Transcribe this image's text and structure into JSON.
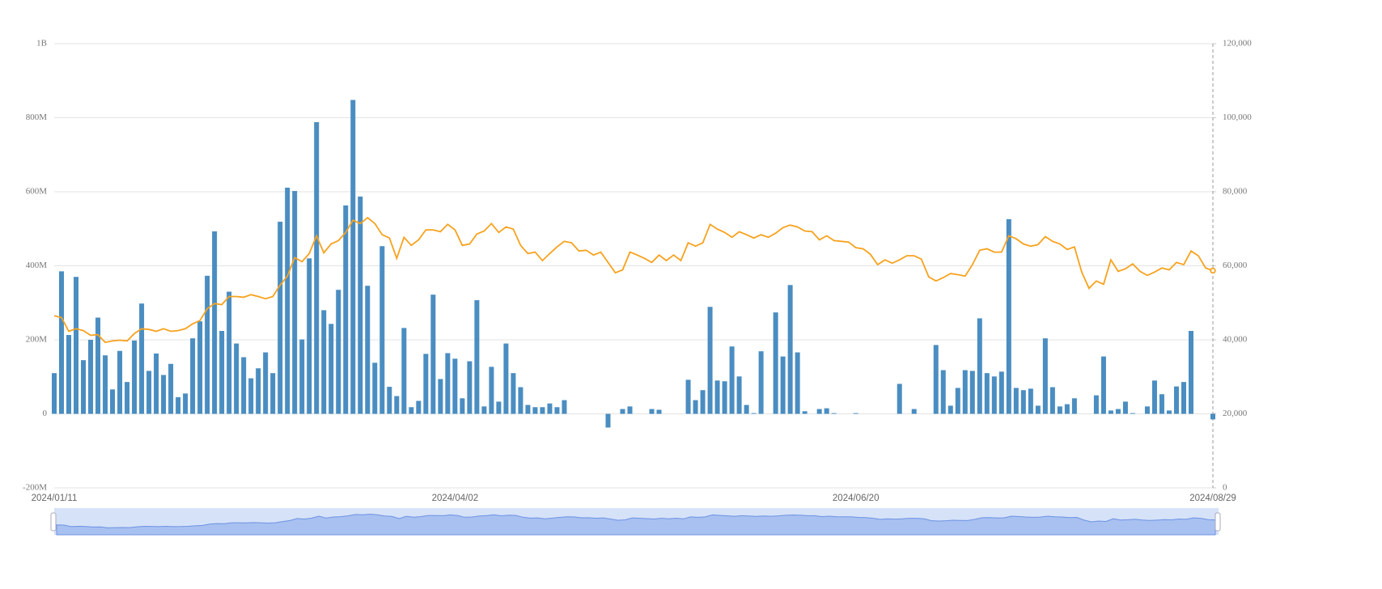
{
  "chart_data": {
    "type": "bar",
    "categories": [
      "2024/01/11",
      null,
      null,
      null,
      null,
      null,
      null,
      null,
      null,
      null,
      null,
      null,
      null,
      null,
      null,
      null,
      null,
      null,
      null,
      null,
      null,
      null,
      null,
      null,
      null,
      null,
      null,
      null,
      null,
      null,
      null,
      null,
      null,
      null,
      null,
      null,
      null,
      null,
      null,
      null,
      null,
      null,
      null,
      null,
      null,
      null,
      null,
      null,
      null,
      null,
      null,
      null,
      null,
      null,
      null,
      "2024/04/02",
      null,
      null,
      null,
      null,
      null,
      null,
      null,
      null,
      null,
      null,
      null,
      null,
      null,
      null,
      null,
      null,
      null,
      null,
      null,
      null,
      null,
      null,
      null,
      null,
      null,
      null,
      null,
      null,
      null,
      null,
      null,
      null,
      null,
      null,
      null,
      null,
      null,
      null,
      null,
      null,
      null,
      null,
      null,
      null,
      null,
      null,
      null,
      null,
      null,
      null,
      null,
      null,
      null,
      null,
      "2024/06/20",
      null,
      null,
      null,
      null,
      null,
      null,
      null,
      null,
      null,
      null,
      null,
      null,
      null,
      null,
      null,
      null,
      null,
      null,
      null,
      null,
      null,
      null,
      null,
      null,
      null,
      null,
      null,
      null,
      null,
      null,
      null,
      null,
      null,
      null,
      null,
      null,
      null,
      null,
      null,
      null,
      null,
      null,
      null,
      null,
      null,
      null,
      null,
      null,
      "2024/08/29"
    ],
    "series": [
      {
        "type": "bar",
        "color": "#4a8dc1",
        "values": [
          110,
          385,
          213,
          370,
          145,
          200,
          260,
          158,
          66,
          170,
          86,
          198,
          298,
          116,
          163,
          105,
          135,
          45,
          55,
          204,
          250,
          373,
          493,
          224,
          330,
          190,
          153,
          96,
          123,
          166,
          110,
          519,
          611,
          602,
          201,
          420,
          788,
          280,
          243,
          335,
          563,
          848,
          587,
          346,
          138,
          453,
          73,
          48,
          232,
          18,
          35,
          162,
          322,
          94,
          164,
          149,
          42,
          142,
          307,
          20,
          127,
          33,
          190,
          110,
          72,
          24,
          18,
          18,
          28,
          18,
          37,
          0,
          0,
          0,
          0,
          0,
          -37,
          0,
          13,
          20,
          0,
          0,
          13,
          11,
          0,
          0,
          0,
          92,
          37,
          64,
          289,
          90,
          88,
          182,
          101,
          24,
          2,
          169,
          0,
          274,
          155,
          348,
          166,
          7,
          0,
          13,
          15,
          2,
          0,
          0,
          2,
          0,
          0,
          0,
          0,
          0,
          81,
          0,
          13,
          0,
          0,
          186,
          118,
          22,
          70,
          118,
          116,
          258,
          110,
          101,
          114,
          526,
          70,
          64,
          68,
          22,
          204,
          72,
          20,
          26,
          42,
          0,
          0,
          50,
          155,
          9,
          13,
          33,
          2,
          0,
          20,
          90,
          53,
          9,
          74,
          86,
          224,
          0,
          0,
          -15
        ]
      },
      {
        "type": "line",
        "axis": "y2",
        "color": "#f7a21e",
        "values": [
          46500,
          46000,
          42300,
          43000,
          42500,
          41200,
          41400,
          39300,
          39700,
          39900,
          39700,
          41700,
          43000,
          42800,
          42300,
          43000,
          42300,
          42500,
          43000,
          44300,
          45200,
          48400,
          49800,
          49500,
          51700,
          51700,
          51500,
          52200,
          51700,
          51100,
          51700,
          54800,
          57200,
          62200,
          61100,
          63300,
          68100,
          63500,
          65900,
          66800,
          69000,
          72300,
          71400,
          73000,
          71400,
          68400,
          67500,
          62000,
          67700,
          65500,
          67000,
          69700,
          69700,
          69200,
          71200,
          69700,
          65500,
          65900,
          68600,
          69400,
          71400,
          69000,
          70500,
          69900,
          65500,
          63300,
          63700,
          61400,
          63300,
          65100,
          66600,
          66200,
          64000,
          64200,
          62900,
          63700,
          60900,
          58100,
          58900,
          63700,
          62900,
          62000,
          60900,
          62900,
          61400,
          62900,
          61400,
          66200,
          65300,
          66200,
          71200,
          69900,
          69000,
          67700,
          69200,
          68400,
          67500,
          68400,
          67700,
          68800,
          70300,
          71000,
          70500,
          69400,
          69200,
          67000,
          68100,
          66800,
          66600,
          66400,
          64900,
          64600,
          63100,
          60300,
          61600,
          60700,
          61600,
          62700,
          62700,
          61800,
          57000,
          55900,
          56800,
          57900,
          57600,
          57200,
          60300,
          64200,
          64600,
          63700,
          63700,
          68100,
          67300,
          65900,
          65300,
          65700,
          67900,
          66600,
          65900,
          64400,
          65100,
          58300,
          53900,
          55900,
          55000,
          61600,
          58500,
          59200,
          60500,
          58500,
          57400,
          58300,
          59400,
          58900,
          60900,
          60300,
          64000,
          62700,
          59400,
          58700
        ]
      }
    ],
    "ylim": [
      -200,
      1000
    ],
    "yticks": [
      {
        "value": -200,
        "label": "-200M"
      },
      0,
      {
        "value": 200,
        "label": "200M"
      },
      {
        "value": 400,
        "label": "400M"
      },
      {
        "value": 600,
        "label": "600M"
      },
      {
        "value": 800,
        "label": "800M"
      },
      {
        "value": 1000,
        "label": "1B"
      }
    ],
    "y2lim": [
      0,
      120000
    ],
    "y2ticks": [
      0,
      {
        "value": 20000,
        "label": "20,000"
      },
      {
        "value": 40000,
        "label": "40,000"
      },
      {
        "value": 60000,
        "label": "60,000"
      },
      {
        "value": 80000,
        "label": "80,000"
      },
      {
        "value": 100000,
        "label": "100,000"
      },
      {
        "value": 120000,
        "label": "120,000"
      }
    ],
    "grid": true
  }
}
